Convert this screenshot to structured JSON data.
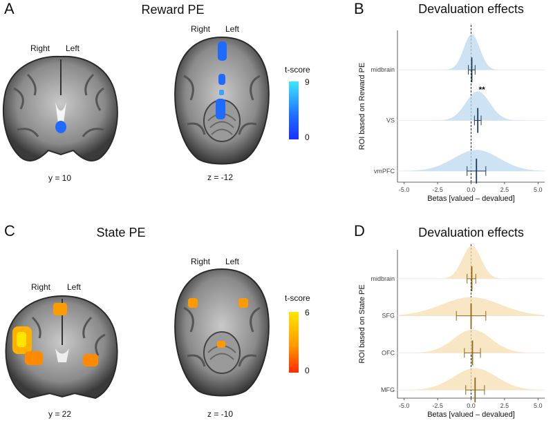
{
  "panels": {
    "A": {
      "letter": "A",
      "title": "Reward PE",
      "coronal": {
        "right": "Right",
        "left": "Left",
        "coord": "y = 10"
      },
      "axial": {
        "right": "Right",
        "left": "Left",
        "coord": "z = -12"
      },
      "colorbar": {
        "title": "t-score",
        "max": "9",
        "min": "0"
      }
    },
    "B": {
      "letter": "B"
    },
    "C": {
      "letter": "C",
      "title": "State PE",
      "coronal": {
        "right": "Right",
        "left": "Left",
        "coord": "y = 22"
      },
      "axial": {
        "right": "Right",
        "left": "Left",
        "coord": "z = -10"
      },
      "colorbar": {
        "title": "t-score",
        "max": "6",
        "min": "0"
      }
    },
    "D": {
      "letter": "D"
    }
  },
  "colors": {
    "reward": "#1f6bff",
    "reward_light": "#3fe6ff",
    "state": "#ff8a00",
    "state_light": "#ffe600",
    "state_dark": "#ff2a00",
    "ridge_b": "#bcd9ef",
    "ridge_d": "#f5ddb0",
    "line_b": "#1f3b57",
    "line_d": "#8a6a14"
  },
  "chart_data": [
    {
      "type": "ridgeline",
      "title": "Devaluation effects",
      "xlabel": "Betas [valued – devalued]",
      "ylabel": "ROI based on Reward PE",
      "xlim": [
        -5.5,
        5.5
      ],
      "xticks": [
        "-5.0",
        "-2.5",
        "0.0",
        "2.5",
        "5.0"
      ],
      "categories": [
        "midbrain",
        "VS",
        "vmPFC"
      ],
      "series": [
        {
          "name": "midbrain",
          "mean": 0.05,
          "ci": [
            -0.2,
            0.3
          ],
          "sd": 0.6
        },
        {
          "name": "VS",
          "mean": 0.5,
          "ci": [
            0.25,
            0.75
          ],
          "sd": 0.9,
          "annotation": "**"
        },
        {
          "name": "vmPFC",
          "mean": 0.4,
          "ci": [
            -0.3,
            1.1
          ],
          "sd": 1.7
        }
      ]
    },
    {
      "type": "ridgeline",
      "title": "Devaluation effects",
      "xlabel": "Betas [valued – devalued]",
      "ylabel": "ROI based on State PE",
      "xlim": [
        -5.5,
        5.5
      ],
      "xticks": [
        "-5.0",
        "-2.5",
        "0.0",
        "2.5",
        "5.0"
      ],
      "categories": [
        "midbrain",
        "SFG",
        "OFC",
        "MFG"
      ],
      "series": [
        {
          "name": "midbrain",
          "mean": 0.05,
          "ci": [
            -0.3,
            0.35
          ],
          "sd": 0.7
        },
        {
          "name": "SFG",
          "mean": 0.0,
          "ci": [
            -1.1,
            1.1
          ],
          "sd": 2.2
        },
        {
          "name": "OFC",
          "mean": 0.1,
          "ci": [
            -0.5,
            0.7
          ],
          "sd": 1.4
        },
        {
          "name": "MFG",
          "mean": 0.3,
          "ci": [
            -0.4,
            1.0
          ],
          "sd": 1.6
        }
      ]
    }
  ]
}
